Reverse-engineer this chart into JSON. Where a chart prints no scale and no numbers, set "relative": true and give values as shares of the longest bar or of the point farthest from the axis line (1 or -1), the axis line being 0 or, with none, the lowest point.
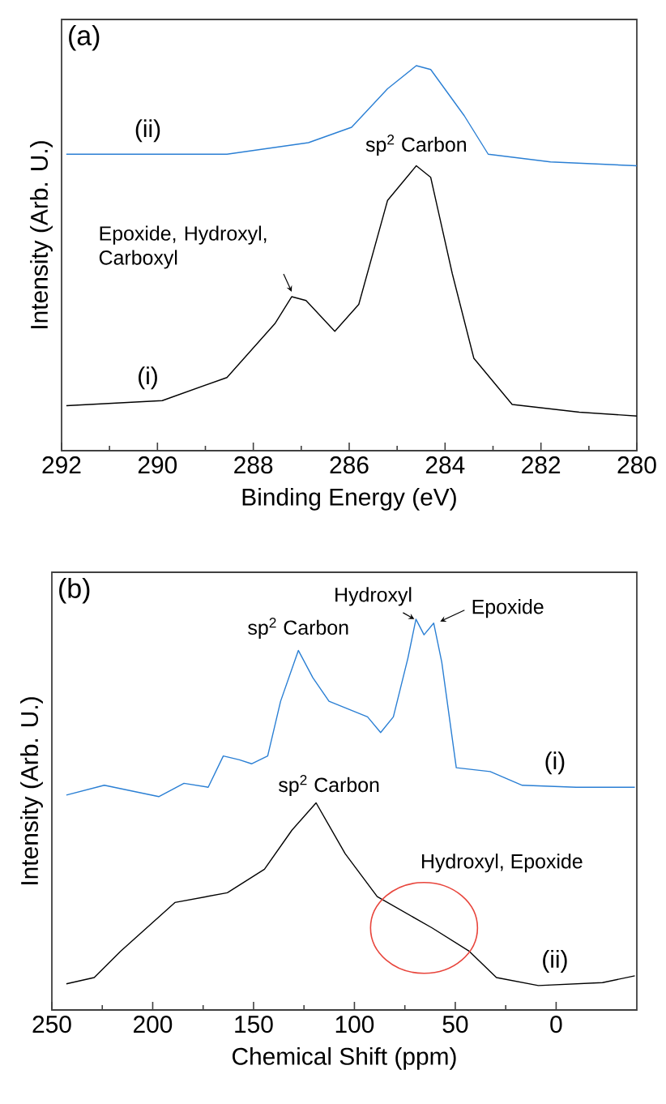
{
  "chart_data": [
    {
      "type": "line",
      "title": "(a)",
      "xlabel": "Binding Energy (eV)",
      "ylabel": "Intensity (Arb. U.)",
      "relative": true,
      "marker": "none",
      "line_style": "solid",
      "xlim": [
        292,
        280
      ],
      "xticks": [
        292,
        290,
        288,
        286,
        284,
        282,
        280
      ],
      "series": [
        {
          "name": "(i)",
          "color": "#000000",
          "x": [
            291.9,
            289.9,
            288.55,
            287.55,
            287.2,
            286.9,
            286.3,
            285.8,
            285.2,
            284.6,
            284.3,
            283.85,
            283.4,
            282.6,
            281.2,
            280.0
          ],
          "values": [
            0.117,
            0.13,
            0.19,
            0.33,
            0.4,
            0.39,
            0.31,
            0.38,
            0.65,
            0.74,
            0.71,
            0.46,
            0.24,
            0.12,
            0.1,
            0.09
          ]
        },
        {
          "name": "(ii)",
          "color": "#2a7fd4",
          "x": [
            291.9,
            288.55,
            286.85,
            285.95,
            285.2,
            284.6,
            284.3,
            283.6,
            283.1,
            281.8,
            280.0
          ],
          "values": [
            0.77,
            0.77,
            0.8,
            0.84,
            0.94,
            1.0,
            0.99,
            0.87,
            0.77,
            0.75,
            0.74
          ]
        }
      ],
      "annotations": [
        {
          "text": "sp$^{2}$ Carbon",
          "x": 284.6,
          "y": 0.74
        },
        {
          "text": "Epoxide, Hydroxyl, Carboxyl",
          "x": 287.2,
          "y": 0.4
        }
      ]
    },
    {
      "type": "line",
      "title": "(b)",
      "xlabel": "Chemical Shift (ppm)",
      "ylabel": "Intensity (Arb. U.)",
      "relative": true,
      "marker": "none",
      "line_style": "solid",
      "xlim": [
        250,
        -40
      ],
      "xticks": [
        250,
        200,
        150,
        100,
        50,
        0
      ],
      "series": [
        {
          "name": "(i)",
          "color": "#2a7fd4",
          "x": [
            242.8,
            224,
            197,
            184.5,
            172.5,
            165,
            157,
            151,
            143,
            136.6,
            127.8,
            120.6,
            112.6,
            93.5,
            87,
            80.7,
            73.5,
            69.5,
            65.5,
            60.7,
            56.7,
            49.5,
            32.7,
            16.8,
            -10,
            -39
          ],
          "values": [
            0.55,
            0.575,
            0.546,
            0.58,
            0.57,
            0.65,
            0.64,
            0.63,
            0.65,
            0.79,
            0.92,
            0.85,
            0.79,
            0.75,
            0.71,
            0.75,
            0.9,
            1.0,
            0.96,
            0.99,
            0.89,
            0.62,
            0.61,
            0.575,
            0.57,
            0.57
          ]
        },
        {
          "name": "(ii)",
          "color": "#000000",
          "x": [
            242.8,
            229,
            216,
            189,
            163,
            144.6,
            131,
            119,
            104.6,
            88.7,
            61.5,
            43,
            29.6,
            8.8,
            -23,
            -39
          ],
          "values": [
            0.067,
            0.083,
            0.15,
            0.275,
            0.3,
            0.36,
            0.46,
            0.53,
            0.4,
            0.29,
            0.21,
            0.15,
            0.083,
            0.0625,
            0.07,
            0.0875
          ]
        }
      ],
      "annotations": [
        {
          "text": "sp$^{2}$ Carbon",
          "x": 127.8,
          "y": 0.92
        },
        {
          "text": "Hydroxyl",
          "x": 69.5,
          "y": 1.0
        },
        {
          "text": "Epoxide",
          "x": 60.7,
          "y": 0.99
        },
        {
          "text": "sp$^{2}$ Carbon",
          "x": 119,
          "y": 0.53
        },
        {
          "text": "Hydroxyl, Epoxide",
          "x": 65.5,
          "y": 0.21
        }
      ]
    }
  ]
}
